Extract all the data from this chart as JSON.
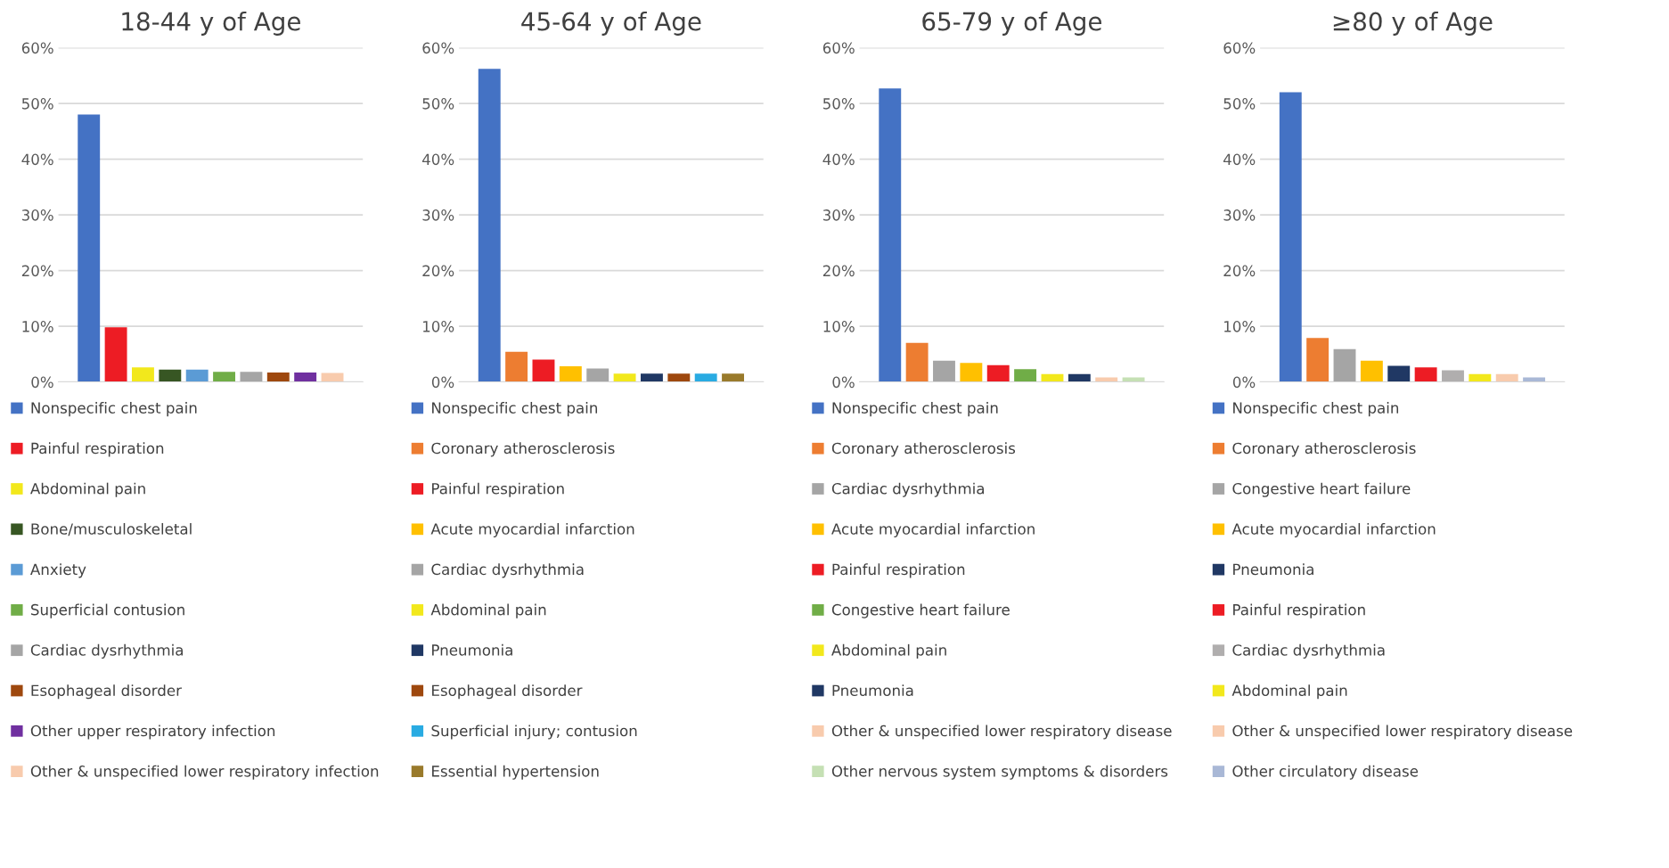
{
  "chart_data": [
    {
      "type": "bar",
      "title": "18-44 y of Age",
      "categories": [
        null
      ],
      "ylim": [
        0,
        60
      ],
      "yticks": [
        {
          "value": 0,
          "label": "0%"
        },
        {
          "value": 10,
          "label": "10%"
        },
        {
          "value": 20,
          "label": "20%"
        },
        {
          "value": 30,
          "label": "30%"
        },
        {
          "value": 40,
          "label": "40%"
        },
        {
          "value": 50,
          "label": "50%"
        },
        {
          "value": 60,
          "label": "60%"
        }
      ],
      "grid": "y",
      "legend": "bottom",
      "tick_labels": "y",
      "series": [
        {
          "name": "Nonspecific chest pain",
          "color": "#4472c4",
          "values": [
            48.0
          ]
        },
        {
          "name": "Painful respiration",
          "color": "#ed1c24",
          "values": [
            9.8
          ]
        },
        {
          "name": "Abdominal pain",
          "color": "#f2e81c",
          "values": [
            2.6
          ]
        },
        {
          "name": "Bone/musculoskeletal",
          "color": "#375623",
          "values": [
            2.2
          ]
        },
        {
          "name": "Anxiety",
          "color": "#5b9bd5",
          "values": [
            2.2
          ]
        },
        {
          "name": "Superficial contusion",
          "color": "#70ad47",
          "values": [
            1.8
          ]
        },
        {
          "name": "Cardiac dysrhythmia",
          "color": "#a5a5a5",
          "values": [
            1.8
          ]
        },
        {
          "name": "Esophageal disorder",
          "color": "#9e480e",
          "values": [
            1.7
          ]
        },
        {
          "name": "Other upper respiratory infection",
          "color": "#7030a0",
          "values": [
            1.7
          ]
        },
        {
          "name": "Other & unspecified lower respiratory infection",
          "color": "#f8cbad",
          "values": [
            1.6
          ]
        }
      ]
    },
    {
      "type": "bar",
      "title": "45-64 y of Age",
      "categories": [
        null
      ],
      "ylim": [
        0,
        60
      ],
      "yticks": [
        {
          "value": 0,
          "label": "0%"
        },
        {
          "value": 10,
          "label": "10%"
        },
        {
          "value": 20,
          "label": "20%"
        },
        {
          "value": 30,
          "label": "30%"
        },
        {
          "value": 40,
          "label": "40%"
        },
        {
          "value": 50,
          "label": "50%"
        },
        {
          "value": 60,
          "label": "60%"
        }
      ],
      "grid": "y",
      "legend": "bottom",
      "tick_labels": "y",
      "series": [
        {
          "name": "Nonspecific chest pain",
          "color": "#4472c4",
          "values": [
            56.2
          ]
        },
        {
          "name": "Coronary atherosclerosis",
          "color": "#ed7d31",
          "values": [
            5.4
          ]
        },
        {
          "name": "Painful respiration",
          "color": "#ed1c24",
          "values": [
            4.0
          ]
        },
        {
          "name": "Acute myocardial infarction",
          "color": "#ffc000",
          "values": [
            2.8
          ]
        },
        {
          "name": "Cardiac dysrhythmia",
          "color": "#a5a5a5",
          "values": [
            2.4
          ]
        },
        {
          "name": "Abdominal pain",
          "color": "#f2e81c",
          "values": [
            1.5
          ]
        },
        {
          "name": "Pneumonia",
          "color": "#203864",
          "values": [
            1.5
          ]
        },
        {
          "name": "Esophageal disorder",
          "color": "#9e480e",
          "values": [
            1.5
          ]
        },
        {
          "name": "Superficial injury; contusion",
          "color": "#29abe2",
          "values": [
            1.5
          ]
        },
        {
          "name": "Essential hypertension",
          "color": "#997a2b",
          "values": [
            1.5
          ]
        }
      ]
    },
    {
      "type": "bar",
      "title": "65-79 y of Age",
      "categories": [
        null
      ],
      "ylim": [
        0,
        60
      ],
      "yticks": [
        {
          "value": 0,
          "label": "0%"
        },
        {
          "value": 10,
          "label": "10%"
        },
        {
          "value": 20,
          "label": "20%"
        },
        {
          "value": 30,
          "label": "30%"
        },
        {
          "value": 40,
          "label": "40%"
        },
        {
          "value": 50,
          "label": "50%"
        },
        {
          "value": 60,
          "label": "60%"
        }
      ],
      "grid": "y",
      "legend": "bottom",
      "tick_labels": "y",
      "series": [
        {
          "name": "Nonspecific chest pain",
          "color": "#4472c4",
          "values": [
            52.7
          ]
        },
        {
          "name": "Coronary atherosclerosis",
          "color": "#ed7d31",
          "values": [
            7.0
          ]
        },
        {
          "name": "Cardiac dysrhythmia",
          "color": "#a5a5a5",
          "values": [
            3.8
          ]
        },
        {
          "name": "Acute myocardial infarction",
          "color": "#ffc000",
          "values": [
            3.4
          ]
        },
        {
          "name": "Painful respiration",
          "color": "#ed1c24",
          "values": [
            3.0
          ]
        },
        {
          "name": "Congestive heart failure",
          "color": "#70ad47",
          "values": [
            2.3
          ]
        },
        {
          "name": "Abdominal pain",
          "color": "#f2e81c",
          "values": [
            1.4
          ]
        },
        {
          "name": "Pneumonia",
          "color": "#203864",
          "values": [
            1.4
          ]
        },
        {
          "name": "Other & unspecified lower respiratory disease",
          "color": "#f8cbad",
          "values": [
            0.8
          ]
        },
        {
          "name": "Other nervous system symptoms & disorders",
          "color": "#c5e0b4",
          "values": [
            0.8
          ]
        }
      ]
    },
    {
      "type": "bar",
      "title": "≥80 y of Age",
      "categories": [
        null
      ],
      "ylim": [
        0,
        60
      ],
      "yticks": [
        {
          "value": 0,
          "label": "0%"
        },
        {
          "value": 10,
          "label": "10%"
        },
        {
          "value": 20,
          "label": "20%"
        },
        {
          "value": 30,
          "label": "30%"
        },
        {
          "value": 40,
          "label": "40%"
        },
        {
          "value": 50,
          "label": "50%"
        },
        {
          "value": 60,
          "label": "60%"
        }
      ],
      "grid": "y",
      "legend": "bottom",
      "tick_labels": "y",
      "series": [
        {
          "name": "Nonspecific chest pain",
          "color": "#4472c4",
          "values": [
            52.0
          ]
        },
        {
          "name": "Coronary atherosclerosis",
          "color": "#ed7d31",
          "values": [
            7.9
          ]
        },
        {
          "name": "Congestive heart failure",
          "color": "#a5a5a5",
          "values": [
            5.9
          ]
        },
        {
          "name": "Acute myocardial infarction",
          "color": "#ffc000",
          "values": [
            3.8
          ]
        },
        {
          "name": "Pneumonia",
          "color": "#203864",
          "values": [
            2.9
          ]
        },
        {
          "name": "Painful respiration",
          "color": "#ed1c24",
          "values": [
            2.6
          ]
        },
        {
          "name": "Cardiac dysrhythmia",
          "color": "#b0aeae",
          "values": [
            2.1
          ]
        },
        {
          "name": "Abdominal pain",
          "color": "#f2e81c",
          "values": [
            1.4
          ]
        },
        {
          "name": "Other & unspecified lower respiratory disease",
          "color": "#f8cbad",
          "values": [
            1.4
          ]
        },
        {
          "name": "Other circulatory disease",
          "color": "#a9b8d6",
          "values": [
            0.8
          ]
        }
      ]
    }
  ]
}
